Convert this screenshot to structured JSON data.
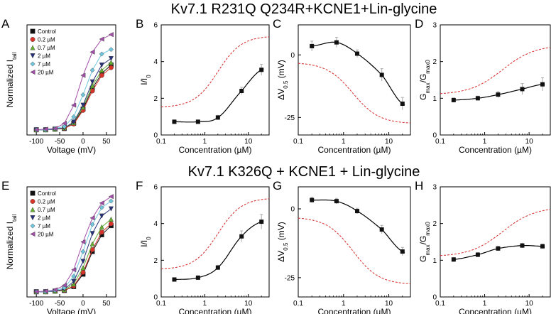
{
  "rows": [
    {
      "title": "Kv7.1 R231Q Q234R+KCNE1+Lin-glycine"
    },
    {
      "title": "Kv7.1 K326Q + KCNE1 + Lin-glycine"
    }
  ],
  "colors": {
    "Control": "#111111",
    "0.2 µM": "#d9342b",
    "0.7 µM": "#66b032",
    "2 µM": "#28327a",
    "7 µM": "#6fc6dc",
    "20 µM": "#a24fa8",
    "reference": "#d62728",
    "fit": "#000000"
  },
  "chart_data": [
    {
      "panel": "A",
      "type": "line",
      "xlabel": "Voltage (mV)",
      "ylabel": "Normalized I",
      "ylabel_sub": "tail",
      "xlim": [
        -120,
        70
      ],
      "ylim": [
        -0.1,
        1.6
      ],
      "xticks": [
        "-100",
        "-50",
        "0",
        "50"
      ],
      "xtick_values": [
        -100,
        -50,
        0,
        50
      ],
      "legend": "top-left",
      "x": [
        -100,
        -80,
        -60,
        -40,
        -20,
        0,
        20,
        40,
        60
      ],
      "series": [
        {
          "name": "Control",
          "marker": "square",
          "values": [
            -0.02,
            -0.02,
            -0.01,
            0.0,
            0.08,
            0.3,
            0.62,
            0.85,
            0.98
          ]
        },
        {
          "name": "0.2 µM",
          "marker": "circle",
          "values": [
            -0.02,
            -0.02,
            -0.01,
            0.0,
            0.07,
            0.28,
            0.58,
            0.82,
            0.94
          ]
        },
        {
          "name": "0.7 µM",
          "marker": "triangle-up",
          "values": [
            -0.02,
            -0.02,
            -0.01,
            0.01,
            0.09,
            0.33,
            0.66,
            0.9,
            1.02
          ]
        },
        {
          "name": "2 µM",
          "marker": "triangle-down",
          "values": [
            -0.02,
            -0.02,
            -0.01,
            0.01,
            0.1,
            0.36,
            0.72,
            0.98,
            1.08
          ]
        },
        {
          "name": "7 µM",
          "marker": "diamond",
          "values": [
            -0.02,
            -0.02,
            0.0,
            0.03,
            0.18,
            0.52,
            0.9,
            1.15,
            1.22
          ]
        },
        {
          "name": "20 µM",
          "marker": "triangle-left",
          "values": [
            -0.02,
            -0.01,
            0.0,
            0.08,
            0.36,
            0.82,
            1.18,
            1.38,
            1.45
          ]
        }
      ]
    },
    {
      "panel": "B",
      "type": "line",
      "xlabel": "Concentration (µM)",
      "ylabel": "I/I",
      "ylabel_sub": "0",
      "xscale": "log",
      "xlim": [
        0.1,
        30
      ],
      "ylim": [
        0,
        6
      ],
      "xticks": [
        "0.1",
        "1",
        "10"
      ],
      "xtick_values": [
        0.1,
        1,
        10
      ],
      "yticks": [
        "0",
        "2",
        "4",
        "6"
      ],
      "ytick_values": [
        0,
        2,
        4,
        6
      ],
      "x": [
        0.2,
        0.7,
        2,
        7,
        20
      ],
      "y": [
        0.72,
        0.72,
        0.95,
        2.4,
        3.55
      ],
      "err": [
        0.1,
        0.1,
        0.12,
        0.2,
        0.3
      ]
    },
    {
      "panel": "C",
      "type": "line",
      "xlabel": "Concentration (µM)",
      "ylabel": "ΔV",
      "ylabel_sub": "0.5",
      "ylabel_unit": " (mV)",
      "xscale": "log",
      "xlim": [
        0.1,
        30
      ],
      "ylim": [
        -32,
        12
      ],
      "xticks": [
        "0.1",
        "1",
        "10"
      ],
      "xtick_values": [
        0.1,
        1,
        10
      ],
      "yticks": [
        "0",
        "-25"
      ],
      "ytick_values": [
        0,
        -25
      ],
      "x": [
        0.2,
        0.7,
        2,
        7,
        20
      ],
      "y": [
        3.5,
        5.0,
        0.5,
        -8.0,
        -19.5
      ],
      "err": [
        2.0,
        2.0,
        1.5,
        2.5,
        2.5
      ]
    },
    {
      "panel": "D",
      "type": "line",
      "xlabel": "Concentration (µM)",
      "ylabel": "G",
      "ylabel_sub": "max",
      "ylabel_mid": "/G",
      "ylabel_sub2": "max0",
      "xscale": "log",
      "xlim": [
        0.1,
        30
      ],
      "ylim": [
        0,
        3
      ],
      "xticks": [
        "0.1",
        "1",
        "10"
      ],
      "xtick_values": [
        0.1,
        1,
        10
      ],
      "yticks": [
        "0",
        "1",
        "2",
        "3"
      ],
      "ytick_values": [
        0,
        1,
        2,
        3
      ],
      "x": [
        0.2,
        0.7,
        2,
        7,
        20
      ],
      "y": [
        0.95,
        1.0,
        1.1,
        1.25,
        1.38
      ],
      "err": [
        0.06,
        0.06,
        0.08,
        0.15,
        0.18
      ]
    },
    {
      "panel": "E",
      "type": "line",
      "xlabel": "Voltage (mV)",
      "ylabel": "Normalized I",
      "ylabel_sub": "tail",
      "xlim": [
        -120,
        70
      ],
      "ylim": [
        -0.1,
        1.6
      ],
      "xticks": [
        "-100",
        "-50",
        "0",
        "50"
      ],
      "xtick_values": [
        -100,
        -50,
        0,
        50
      ],
      "legend": "top-left",
      "x": [
        -100,
        -80,
        -60,
        -40,
        -20,
        0,
        20,
        40,
        60
      ],
      "series": [
        {
          "name": "Control",
          "marker": "square",
          "values": [
            -0.02,
            -0.02,
            -0.01,
            0.0,
            0.06,
            0.25,
            0.6,
            0.86,
            1.0
          ]
        },
        {
          "name": "0.2 µM",
          "marker": "circle",
          "values": [
            -0.02,
            -0.02,
            -0.01,
            0.0,
            0.07,
            0.28,
            0.63,
            0.9,
            1.03
          ]
        },
        {
          "name": "0.7 µM",
          "marker": "triangle-up",
          "values": [
            -0.02,
            -0.02,
            -0.01,
            0.01,
            0.1,
            0.35,
            0.72,
            0.98,
            1.1
          ]
        },
        {
          "name": "2 µM",
          "marker": "triangle-down",
          "values": [
            -0.02,
            -0.02,
            -0.01,
            0.02,
            0.14,
            0.45,
            0.88,
            1.15,
            1.26
          ]
        },
        {
          "name": "7 µM",
          "marker": "diamond",
          "values": [
            -0.02,
            -0.02,
            0.0,
            0.04,
            0.22,
            0.6,
            1.02,
            1.28,
            1.38
          ]
        },
        {
          "name": "20 µM",
          "marker": "triangle-left",
          "values": [
            -0.02,
            -0.01,
            0.01,
            0.08,
            0.32,
            0.75,
            1.12,
            1.35,
            1.45
          ]
        }
      ]
    },
    {
      "panel": "F",
      "type": "line",
      "xlabel": "Concentration (µM)",
      "ylabel": "I/I",
      "ylabel_sub": "0",
      "xscale": "log",
      "xlim": [
        0.1,
        30
      ],
      "ylim": [
        0,
        6
      ],
      "xticks": [
        "0.1",
        "1",
        "10"
      ],
      "xtick_values": [
        0.1,
        1,
        10
      ],
      "yticks": [
        "0",
        "2",
        "4",
        "6"
      ],
      "ytick_values": [
        0,
        2,
        4,
        6
      ],
      "x": [
        0.2,
        0.7,
        2,
        7,
        20
      ],
      "y": [
        0.95,
        1.05,
        1.6,
        3.3,
        4.1
      ],
      "err": [
        0.08,
        0.1,
        0.12,
        0.3,
        0.4
      ]
    },
    {
      "panel": "G",
      "type": "line",
      "xlabel": "Concentration (µM)",
      "ylabel": "ΔV",
      "ylabel_sub": "0.5",
      "ylabel_unit": " (mV)",
      "xscale": "log",
      "xlim": [
        0.1,
        30
      ],
      "ylim": [
        -32,
        8
      ],
      "xticks": [
        "0.1",
        "1",
        "10"
      ],
      "xtick_values": [
        0.1,
        1,
        10
      ],
      "yticks": [
        "0",
        "-25"
      ],
      "ytick_values": [
        0,
        -25
      ],
      "x": [
        0.2,
        0.7,
        2,
        7,
        20
      ],
      "y": [
        3.2,
        2.8,
        -0.8,
        -7.5,
        -15.5
      ],
      "err": [
        1.0,
        1.0,
        1.0,
        1.5,
        1.5
      ]
    },
    {
      "panel": "H",
      "type": "line",
      "xlabel": "Concentration (µM)",
      "ylabel": "G",
      "ylabel_sub": "max",
      "ylabel_mid": "/G",
      "ylabel_sub2": "max0",
      "xscale": "log",
      "xlim": [
        0.1,
        30
      ],
      "ylim": [
        0,
        3
      ],
      "xticks": [
        "0.1",
        "1",
        "10"
      ],
      "xtick_values": [
        0.1,
        1,
        10
      ],
      "yticks": [
        "0",
        "1",
        "2",
        "3"
      ],
      "ytick_values": [
        0,
        1,
        2,
        3
      ],
      "x": [
        0.2,
        0.7,
        2,
        7,
        20
      ],
      "y": [
        1.02,
        1.15,
        1.32,
        1.4,
        1.38
      ],
      "err": [
        0.05,
        0.06,
        0.06,
        0.06,
        0.06
      ]
    }
  ],
  "reference_curves": {
    "description_visible": false,
    "I_over_I0": {
      "bottom": 1.5,
      "top": 5.4,
      "ec50": 2.0,
      "hill": 1.6
    },
    "dV05": {
      "bottom": -3.0,
      "top": -27.5,
      "ec50": 1.6,
      "hill": 1.5
    },
    "Gmax": {
      "bottom": 1.1,
      "top": 2.45,
      "ec50": 2.5,
      "hill": 1.2
    }
  }
}
